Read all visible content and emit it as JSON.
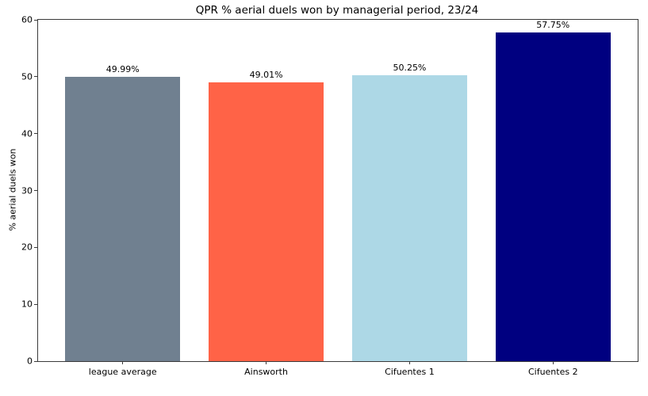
{
  "chart_data": {
    "type": "bar",
    "title": "QPR % aerial duels won by managerial period, 23/24",
    "xlabel": "",
    "ylabel": "% aerial duels won",
    "categories": [
      "league average",
      "Ainsworth",
      "Cifuentes 1",
      "Cifuentes 2"
    ],
    "values": [
      49.99,
      49.01,
      50.25,
      57.75
    ],
    "value_labels": [
      "49.99%",
      "49.01%",
      "50.25%",
      "57.75%"
    ],
    "bar_colors": [
      "#708090",
      "#FF6347",
      "#ADD8E6",
      "#000080"
    ],
    "ylim": [
      0,
      60
    ],
    "yticks": [
      0,
      10,
      20,
      30,
      40,
      50,
      60
    ],
    "ytick_labels": [
      "0",
      "10",
      "20",
      "30",
      "40",
      "50",
      "60"
    ],
    "grid": false,
    "legend_position": "none",
    "background_color": "#ffffff",
    "text_color": "#000000"
  }
}
